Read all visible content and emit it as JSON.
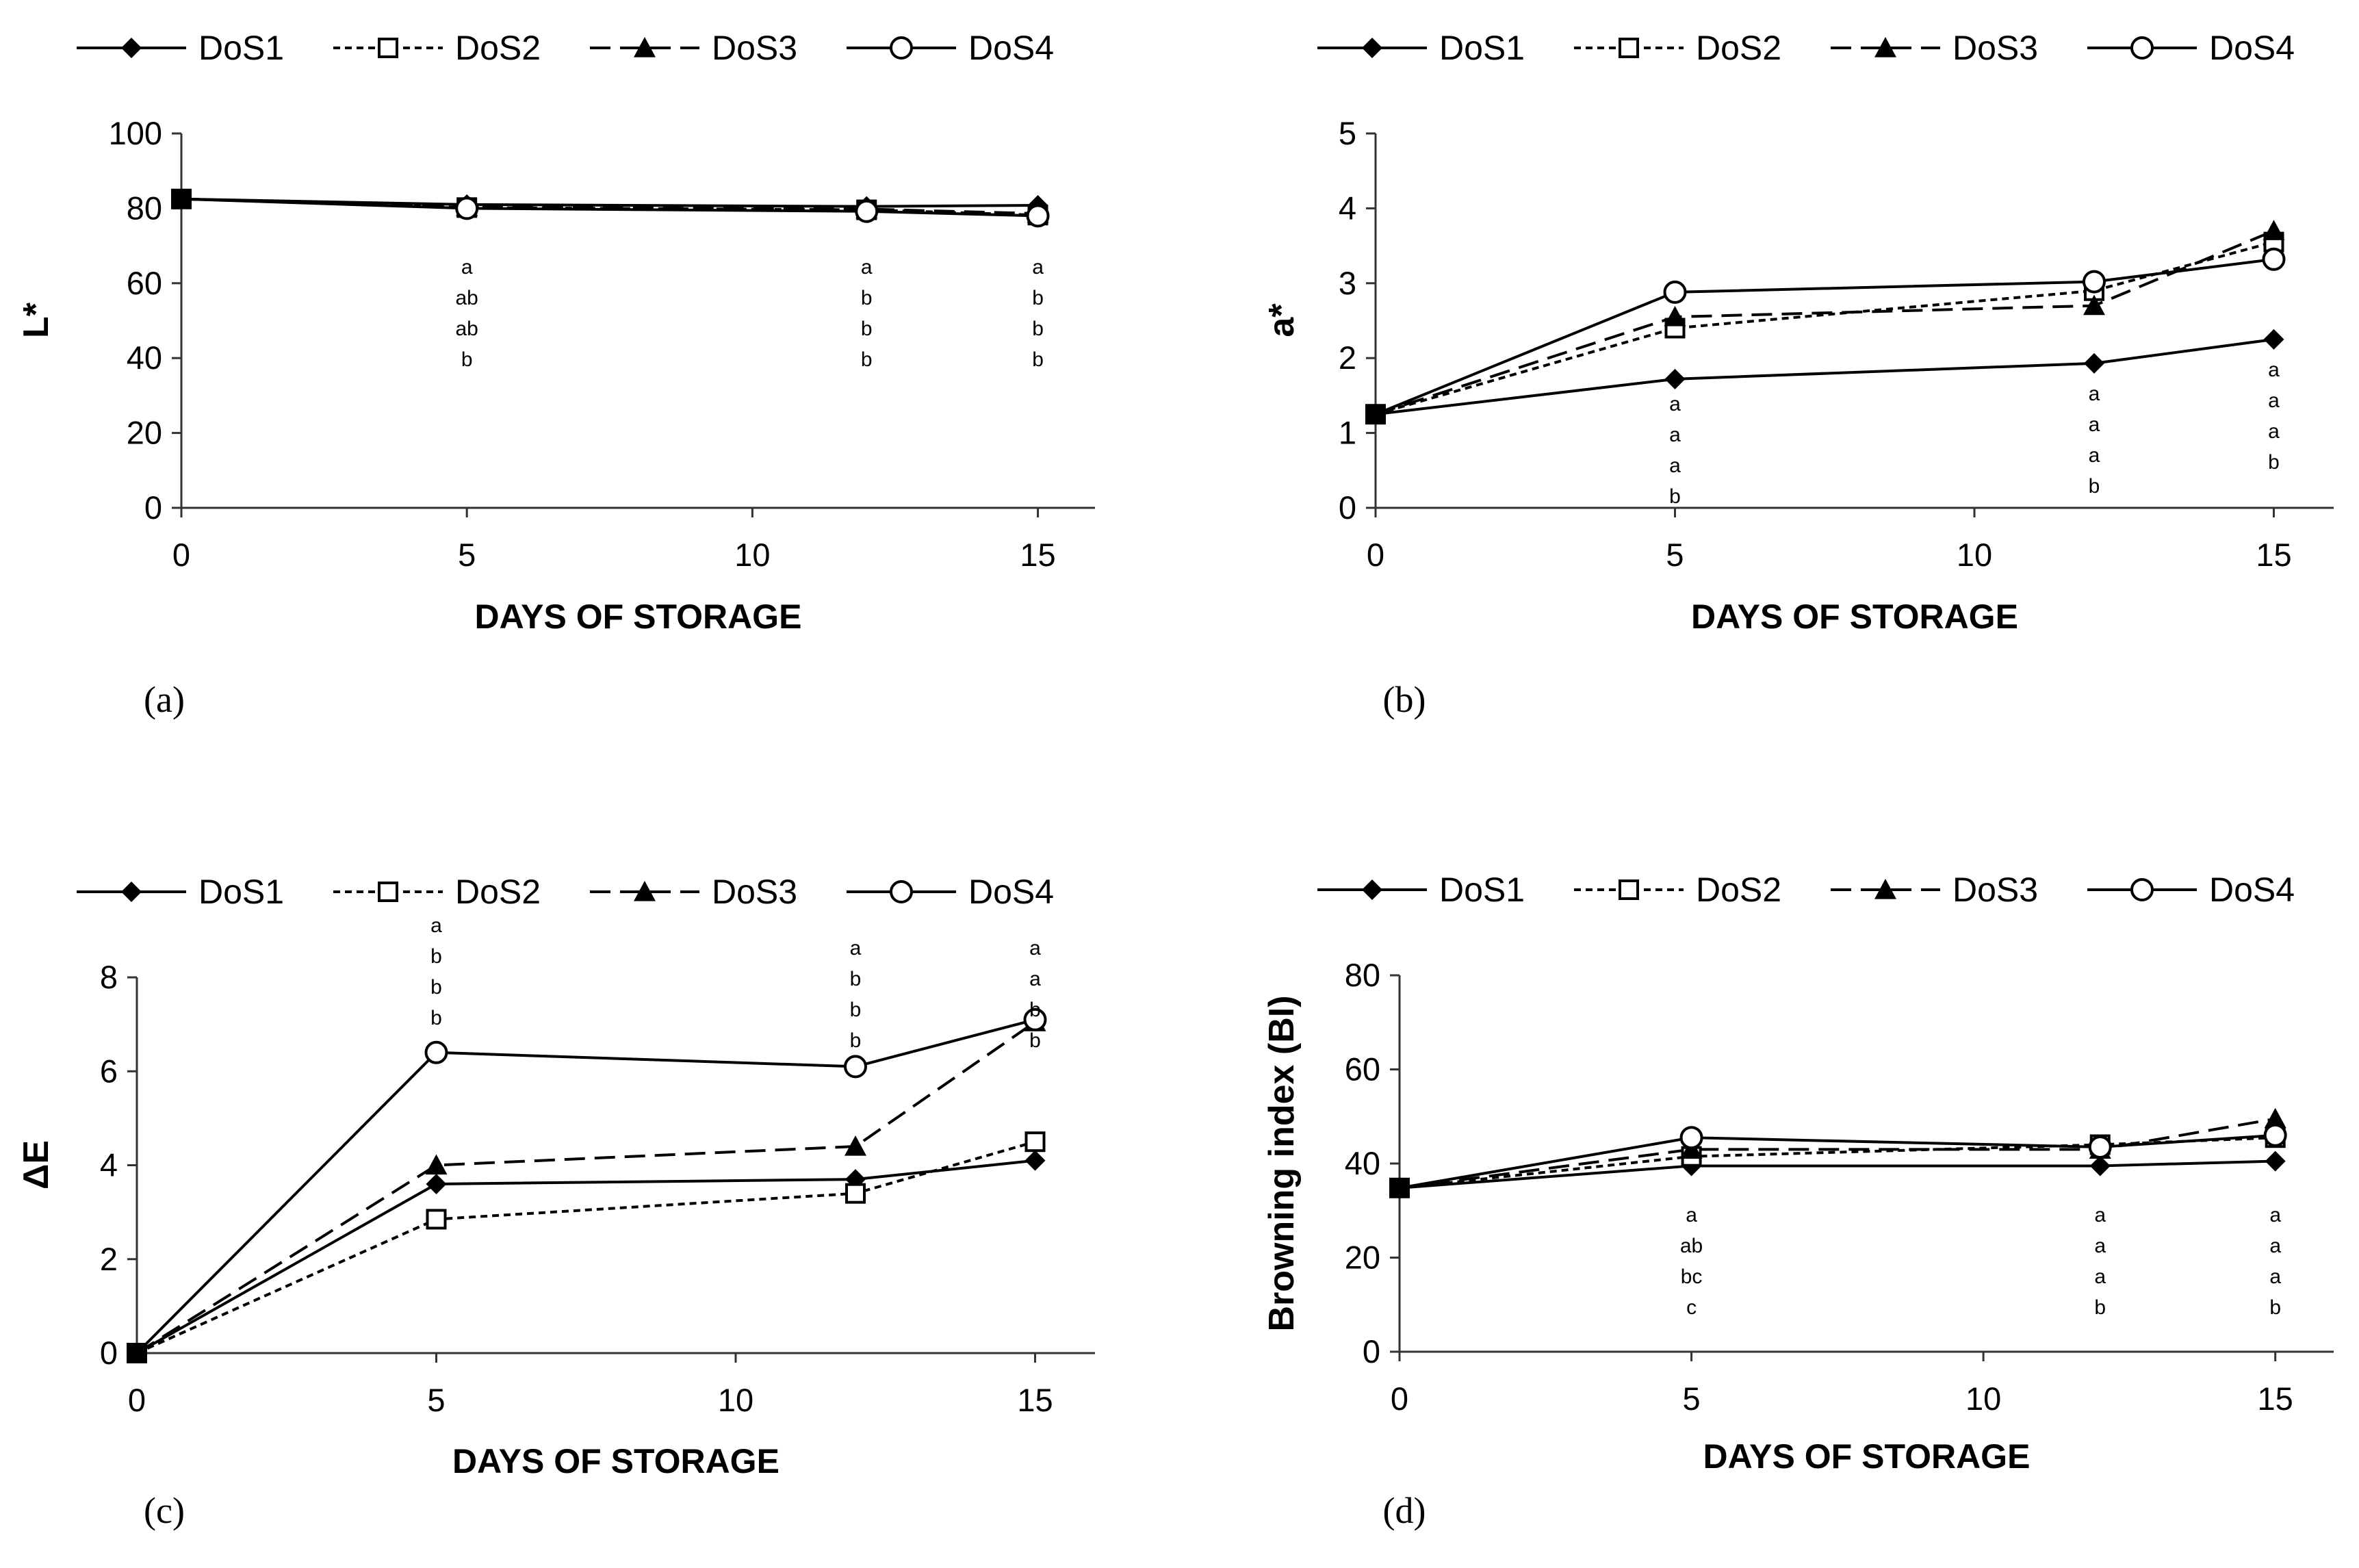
{
  "chart_data": [
    {
      "type": "line",
      "panel": "(a)",
      "legend": [
        "DoS1",
        "DoS2",
        "DoS3",
        "DoS4"
      ],
      "xlabel": "DAYS OF STORAGE",
      "ylabel": "L*",
      "x": [
        0,
        5,
        12,
        15
      ],
      "xticks": [
        0,
        5,
        10,
        15
      ],
      "xlim": [
        0,
        16
      ],
      "yticks": [
        0,
        20,
        40,
        60,
        80,
        100
      ],
      "ylim": [
        0,
        100
      ],
      "series": [
        {
          "name": "DoS1",
          "values": [
            82.5,
            81.0,
            80.5,
            80.8
          ]
        },
        {
          "name": "DoS2",
          "values": [
            82.5,
            80.2,
            79.6,
            78.2
          ]
        },
        {
          "name": "DoS3",
          "values": [
            82.5,
            80.4,
            79.8,
            78.6
          ]
        },
        {
          "name": "DoS4",
          "values": [
            82.5,
            80.0,
            79.2,
            78.0
          ]
        }
      ],
      "letters": [
        {
          "x": 5,
          "labels": [
            "a",
            "ab",
            "ab",
            "b"
          ]
        },
        {
          "x": 12,
          "labels": [
            "a",
            "b",
            "b",
            "b"
          ]
        },
        {
          "x": 15,
          "labels": [
            "a",
            "b",
            "b",
            "b"
          ]
        }
      ]
    },
    {
      "type": "line",
      "panel": "(b)",
      "legend": [
        "DoS1",
        "DoS2",
        "DoS3",
        "DoS4"
      ],
      "xlabel": "DAYS OF STORAGE",
      "ylabel": "a*",
      "x": [
        0,
        5,
        12,
        15
      ],
      "xticks": [
        0,
        5,
        10,
        15
      ],
      "xlim": [
        0,
        16
      ],
      "yticks": [
        0,
        1,
        2,
        3,
        4,
        5
      ],
      "ylim": [
        0,
        5
      ],
      "series": [
        {
          "name": "DoS1",
          "values": [
            1.25,
            1.72,
            1.93,
            2.25
          ]
        },
        {
          "name": "DoS2",
          "values": [
            1.25,
            2.4,
            2.9,
            3.55
          ]
        },
        {
          "name": "DoS3",
          "values": [
            1.25,
            2.55,
            2.7,
            3.7
          ]
        },
        {
          "name": "DoS4",
          "values": [
            1.25,
            2.88,
            3.02,
            3.32
          ]
        }
      ],
      "letters": [
        {
          "x": 5,
          "labels": [
            "a",
            "a",
            "a",
            "b"
          ]
        },
        {
          "x": 12,
          "labels": [
            "a",
            "a",
            "a",
            "b"
          ]
        },
        {
          "x": 15,
          "labels": [
            "a",
            "a",
            "a",
            "b"
          ]
        }
      ]
    },
    {
      "type": "line",
      "panel": "(c)",
      "legend": [
        "DoS1",
        "DoS2",
        "DoS3",
        "DoS4"
      ],
      "xlabel": "DAYS OF STORAGE",
      "ylabel": "ΔE",
      "x": [
        0,
        5,
        12,
        15
      ],
      "xticks": [
        0,
        5,
        10,
        15
      ],
      "xlim": [
        0,
        16
      ],
      "yticks": [
        0,
        2,
        4,
        6,
        8
      ],
      "ylim": [
        0,
        8
      ],
      "series": [
        {
          "name": "DoS1",
          "values": [
            0,
            3.6,
            3.7,
            4.1
          ]
        },
        {
          "name": "DoS2",
          "values": [
            0,
            2.85,
            3.4,
            4.5
          ]
        },
        {
          "name": "DoS3",
          "values": [
            0,
            4.0,
            4.4,
            7.05
          ]
        },
        {
          "name": "DoS4",
          "values": [
            0,
            6.4,
            6.1,
            7.1
          ]
        }
      ],
      "letters": [
        {
          "x": 5,
          "labels": [
            "a",
            "b",
            "b",
            "b"
          ]
        },
        {
          "x": 12,
          "labels": [
            "a",
            "b",
            "b",
            "b"
          ]
        },
        {
          "x": 15,
          "labels": [
            "a",
            "a",
            "b",
            "b"
          ]
        }
      ]
    },
    {
      "type": "line",
      "panel": "(d)",
      "legend": [
        "DoS1",
        "DoS2",
        "DoS3",
        "DoS4"
      ],
      "xlabel": "DAYS OF STORAGE",
      "ylabel": "Browning index (BI)",
      "x": [
        0,
        5,
        12,
        15
      ],
      "xticks": [
        0,
        5,
        10,
        15
      ],
      "xlim": [
        0,
        16
      ],
      "yticks": [
        0,
        20,
        40,
        60,
        80
      ],
      "ylim": [
        0,
        80
      ],
      "series": [
        {
          "name": "DoS1",
          "values": [
            34.8,
            39.5,
            39.5,
            40.5
          ]
        },
        {
          "name": "DoS2",
          "values": [
            34.8,
            41.5,
            44.0,
            45.5
          ]
        },
        {
          "name": "DoS3",
          "values": [
            34.8,
            43.0,
            43.0,
            49.5
          ]
        },
        {
          "name": "DoS4",
          "values": [
            34.8,
            45.5,
            43.5,
            46.0
          ]
        }
      ],
      "letters": [
        {
          "x": 5,
          "labels": [
            "a",
            "ab",
            "bc",
            "c"
          ]
        },
        {
          "x": 12,
          "labels": [
            "a",
            "a",
            "a",
            "b"
          ]
        },
        {
          "x": 15,
          "labels": [
            "a",
            "a",
            "a",
            "b"
          ]
        }
      ]
    }
  ]
}
